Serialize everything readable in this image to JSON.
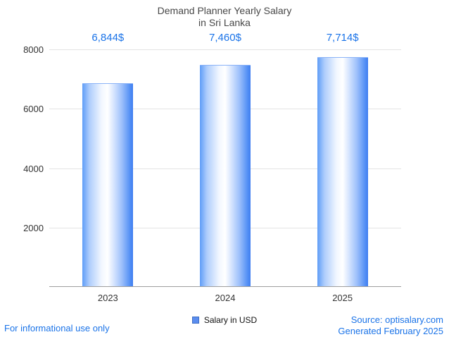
{
  "title": {
    "line1": "Demand Planner Yearly Salary",
    "line2": "in Sri Lanka"
  },
  "chart_data": {
    "type": "bar",
    "title": "Demand Planner Yearly Salary in Sri Lanka",
    "categories": [
      "2023",
      "2024",
      "2025"
    ],
    "values": [
      6844,
      7460,
      7714
    ],
    "value_labels": [
      "6,844$",
      "7,460$",
      "7,714$"
    ],
    "series_name": "Salary in USD",
    "xlabel": "",
    "ylabel": "",
    "ylim": [
      0,
      8000
    ],
    "yticks": [
      2000,
      4000,
      6000,
      8000
    ],
    "grid": true,
    "legend_position": "bottom"
  },
  "legend": {
    "label": "Salary in USD"
  },
  "footer": {
    "left": "For informational use only",
    "source": "Source: optisalary.com",
    "generated": "Generated February 2025"
  },
  "colors": {
    "accent_text": "#1a73e8",
    "title_text": "#474747",
    "axis_text": "#333333",
    "gridline": "#e3e3e3",
    "axis_line": "#9e9e9e",
    "legend_swatch": "#5b8def",
    "bar_edge": "#3f7df0",
    "bar_center": "#ffffff"
  }
}
